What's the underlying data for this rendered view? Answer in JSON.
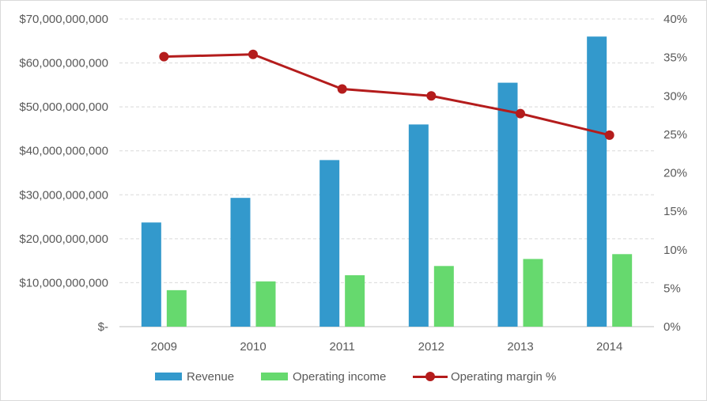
{
  "chart_data": {
    "type": "bar",
    "categories": [
      "2009",
      "2010",
      "2011",
      "2012",
      "2013",
      "2014"
    ],
    "series": [
      {
        "name": "Revenue",
        "kind": "bar",
        "axis": "left",
        "color": "#3399cc",
        "values": [
          23700000000,
          29300000000,
          37900000000,
          46000000000,
          55500000000,
          66000000000
        ]
      },
      {
        "name": "Operating income",
        "kind": "bar",
        "axis": "left",
        "color": "#66d96e",
        "values": [
          8300000000,
          10300000000,
          11700000000,
          13800000000,
          15400000000,
          16500000000
        ]
      },
      {
        "name": "Operating margin %",
        "kind": "line",
        "axis": "right",
        "color": "#b41c1c",
        "values": [
          0.351,
          0.354,
          0.309,
          0.3,
          0.277,
          0.249
        ]
      }
    ],
    "left_axis": {
      "ylim": [
        0,
        70000000000
      ],
      "ticks": [
        0,
        10000000000,
        20000000000,
        30000000000,
        40000000000,
        50000000000,
        60000000000,
        70000000000
      ],
      "tick_labels": [
        "$-",
        "$10,000,000,000",
        "$20,000,000,000",
        "$30,000,000,000",
        "$40,000,000,000",
        "$50,000,000,000",
        "$60,000,000,000",
        "$70,000,000,000"
      ]
    },
    "right_axis": {
      "ylim": [
        0,
        0.4
      ],
      "ticks": [
        0,
        0.05,
        0.1,
        0.15,
        0.2,
        0.25,
        0.3,
        0.35,
        0.4
      ],
      "tick_labels": [
        "0%",
        "5%",
        "10%",
        "15%",
        "20%",
        "25%",
        "30%",
        "35%",
        "40%"
      ]
    },
    "grid": true,
    "legend_position": "bottom",
    "title": "",
    "xlabel": "",
    "ylabel": ""
  },
  "legend": {
    "revenue_label": "Revenue",
    "operating_income_label": "Operating income",
    "operating_margin_label": "Operating margin %"
  }
}
